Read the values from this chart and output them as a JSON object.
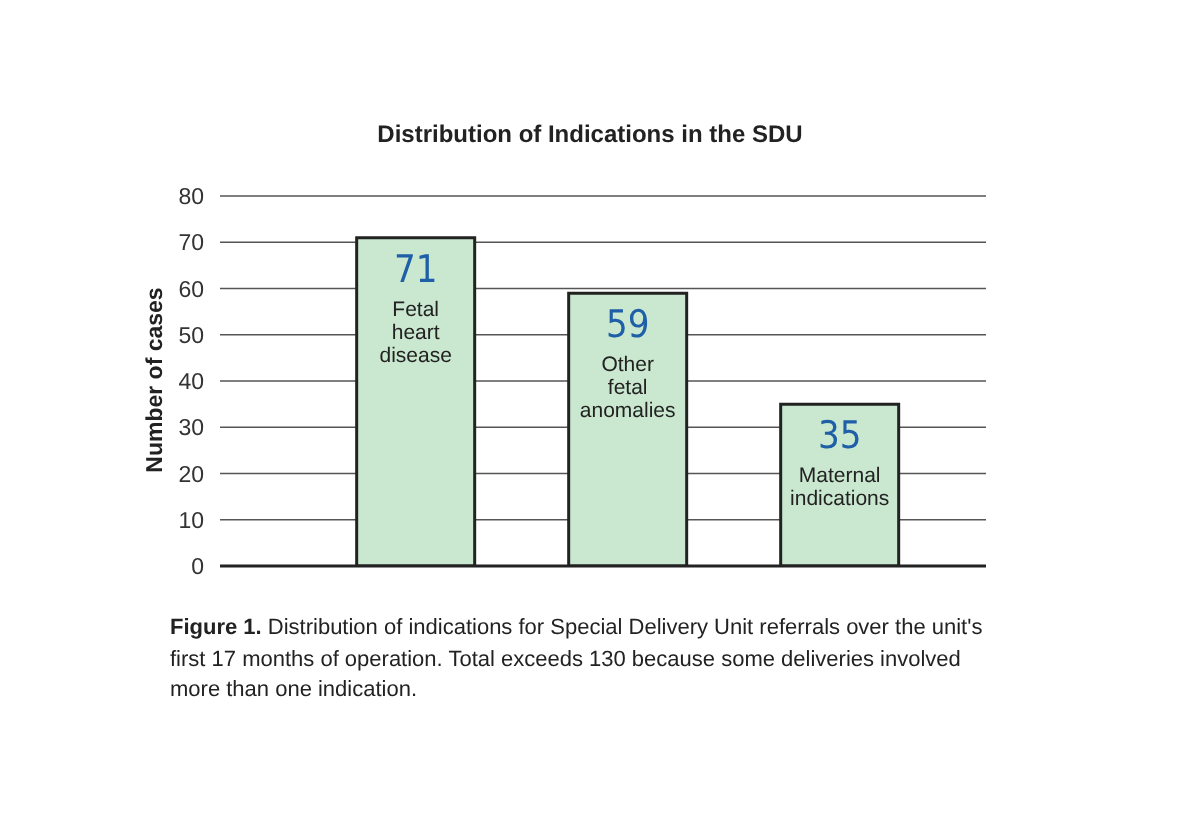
{
  "chart_data": {
    "type": "bar",
    "title": "Distribution of Indications in the SDU",
    "ylabel": "Number of cases",
    "categories": [
      "Fetal heart disease",
      "Other fetal anomalies",
      "Maternal indications"
    ],
    "values": [
      71,
      59,
      35
    ],
    "color": "#c9e8cf",
    "data_labels": true,
    "ylim": [
      0,
      80
    ],
    "yticks": [
      0,
      10,
      20,
      30,
      40,
      50,
      60,
      70,
      80
    ],
    "grid": "y",
    "annotations": [
      "Figure 1. Distribution of indications for Special Delivery Unit referrals over the unit's first 17 months of operation. Total exceeds 130 because some deliveries involved more than one indication."
    ]
  }
}
